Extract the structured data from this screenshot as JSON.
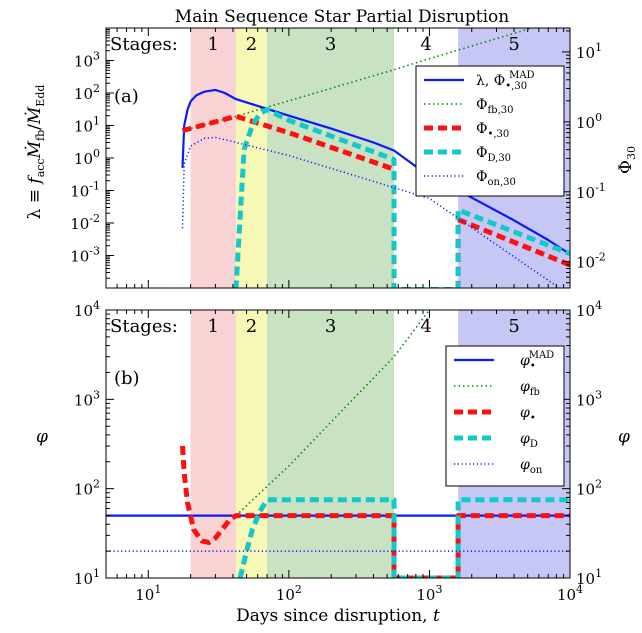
{
  "chart_data": [
    {
      "type": "line",
      "title": "Main Sequence Star Partial Disruption",
      "panel_label": "(a)",
      "xlabel": "Days since disruption,  t",
      "ylabel": "λ ≡ f_acc Ṁ_fb / Ṁ_Edd",
      "ylabel_right": "Φ_30",
      "xscale": "log",
      "yscale": "log",
      "yscale_right": "log",
      "xlim": [
        5,
        10000
      ],
      "ylim": [
        0.0001,
        10000
      ],
      "ylim_right": [
        0.0042,
        22
      ],
      "x_ticks": [
        "10^1",
        "10^2",
        "10^3",
        "10^4"
      ],
      "y_ticks": [
        "10^-3",
        "10^-2",
        "10^-1",
        "10^0",
        "10^1",
        "10^2",
        "10^3"
      ],
      "y_right_ticks": [
        "10^-2",
        "10^-1",
        "10^0",
        "10^1"
      ],
      "stages_label": "Stages:",
      "stages": [
        {
          "label": "1",
          "start": 20,
          "end": 42,
          "color": "#f9d3d3"
        },
        {
          "label": "2",
          "start": 42,
          "end": 70,
          "color": "#f7f7b6"
        },
        {
          "label": "3",
          "start": 70,
          "end": 560,
          "color": "#c9e2c3"
        },
        {
          "label": "4",
          "start": 560,
          "end": 1600,
          "color": "#ffffff"
        },
        {
          "label": "5",
          "start": 1600,
          "end": 10000,
          "color": "#c7c7f5"
        }
      ],
      "series": [
        {
          "name": "λ,  Φ•,30^MAD",
          "axis": "left",
          "color": "#0a1aff",
          "style": "solid",
          "x": [
            17.5,
            18,
            19,
            20,
            22,
            25,
            30,
            35,
            42,
            60,
            100,
            200,
            400,
            560,
            800,
            1000,
            2000,
            4000,
            7000,
            10000
          ],
          "y": [
            0.5,
            10,
            30,
            55,
            85,
            110,
            125,
            100,
            65,
            40,
            20,
            8,
            3,
            1.7,
            0.55,
            0.3,
            0.06,
            0.012,
            0.003,
            0.0011
          ]
        },
        {
          "name": "Φfb,30",
          "axis": "right",
          "color": "#0a8a0a",
          "style": "dotted",
          "x": [
            17.5,
            42,
            100,
            500,
            1000,
            3000,
            10000
          ],
          "y": [
            0.75,
            1.2,
            2.0,
            5.2,
            8.0,
            15.5,
            32
          ]
        },
        {
          "name": "Φ•,30",
          "axis": "right",
          "color": "#ff1010",
          "style": "dashed-thick",
          "x": [
            17.5,
            30,
            42,
            100,
            560,
            560,
            1600,
            1600,
            10000
          ],
          "y": [
            0.75,
            1.0,
            1.2,
            0.7,
            0.21,
            0.004,
            0.004,
            0.04,
            0.009
          ]
        },
        {
          "name": "ΦD,30",
          "axis": "right",
          "color": "#12c8c8",
          "style": "dashed-thick",
          "x": [
            42,
            48,
            55,
            62,
            70,
            100,
            560,
            560,
            1600,
            1600,
            10000
          ],
          "y": [
            0.004,
            0.4,
            0.9,
            1.3,
            1.5,
            1.05,
            0.29,
            0.004,
            0.004,
            0.055,
            0.013
          ]
        },
        {
          "name": "Φon,30",
          "axis": "right",
          "color": "#0a1aff",
          "style": "dotted-fine",
          "x": [
            17.5,
            18,
            20,
            25,
            30,
            100,
            1000,
            10000
          ],
          "y": [
            0.03,
            0.25,
            0.45,
            0.58,
            0.6,
            0.33,
            0.08,
            0.0033
          ]
        }
      ]
    },
    {
      "type": "line",
      "panel_label": "(b)",
      "xlabel": "Days since disruption,  t",
      "ylabel": "φ",
      "ylabel_right": "φ",
      "xscale": "log",
      "yscale": "log",
      "xlim": [
        5,
        10000
      ],
      "ylim": [
        10,
        10000
      ],
      "x_ticks": [
        "10^1",
        "10^2",
        "10^3",
        "10^4"
      ],
      "y_ticks": [
        "10^1",
        "10^2",
        "10^3",
        "10^4"
      ],
      "stages_label": "Stages:",
      "series": [
        {
          "name": "φ•^MAD",
          "color": "#0a1aff",
          "style": "solid",
          "x": [
            5,
            10000
          ],
          "y": [
            50,
            50
          ]
        },
        {
          "name": "φfb",
          "color": "#0a8a0a",
          "style": "dotted",
          "x": [
            42,
            100,
            560,
            1000
          ],
          "y": [
            50,
            180,
            3000,
            10000
          ]
        },
        {
          "name": "φ•",
          "color": "#ff1010",
          "style": "dashed-thick",
          "x": [
            17.5,
            18,
            19,
            21,
            24,
            27,
            30,
            34,
            38,
            42,
            560,
            560,
            1600,
            1600,
            10000
          ],
          "y": [
            300,
            150,
            70,
            35,
            26,
            25,
            28,
            36,
            45,
            50,
            50,
            10,
            10,
            50,
            50
          ]
        },
        {
          "name": "φD",
          "color": "#12c8c8",
          "style": "dashed-thick",
          "x": [
            45,
            50,
            55,
            62,
            70,
            560,
            560,
            1600,
            1600,
            10000
          ],
          "y": [
            10,
            20,
            35,
            55,
            75,
            75,
            10,
            10,
            75,
            75
          ]
        },
        {
          "name": "φon",
          "color": "#0a1aff",
          "style": "dotted-fine",
          "x": [
            5,
            10000
          ],
          "y": [
            20,
            20
          ]
        }
      ]
    }
  ]
}
